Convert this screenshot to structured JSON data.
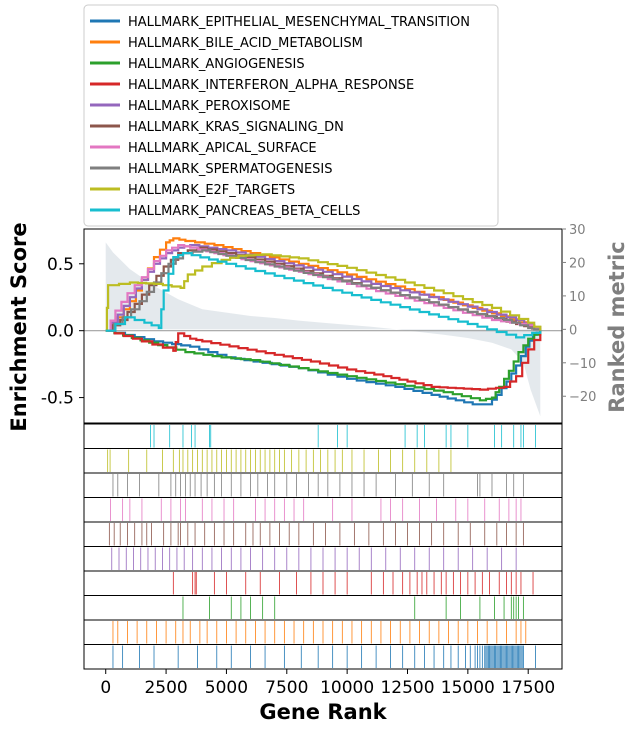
{
  "chart_data": {
    "type": "line",
    "xlabel": "Gene Rank",
    "ylabel": "Enrichment Score",
    "y2label": "Ranked metric",
    "xlim": [
      -900,
      18900
    ],
    "ylim": [
      -0.69,
      0.76
    ],
    "y2lim": [
      -28,
      30
    ],
    "x_ticks": [
      0,
      2500,
      5000,
      7500,
      10000,
      12500,
      15000,
      17500
    ],
    "x_tick_labels": [
      "0",
      "2500",
      "5000",
      "7500",
      "10000",
      "12500",
      "15000",
      "17500"
    ],
    "y_ticks": [
      0.5,
      0.0,
      -0.5
    ],
    "y_tick_labels": [
      "0.5",
      "0.0",
      "-0.5"
    ],
    "y2_ticks": [
      30,
      20,
      10,
      0,
      -10,
      -20
    ],
    "y2_tick_labels": [
      "30",
      "20",
      "10",
      "0",
      "−10",
      "−20"
    ],
    "legend_position": "top",
    "n_genes": 18000,
    "ranked_metric": {
      "x": [
        0,
        300,
        1000,
        2000,
        3000,
        4000,
        5000,
        6000,
        7000,
        8000,
        9000,
        10000,
        11000,
        12000,
        13000,
        14000,
        15000,
        16000,
        16800,
        17300,
        17600,
        18000
      ],
      "y": [
        26,
        23,
        18,
        13,
        9,
        6,
        5,
        4,
        3.4,
        2.6,
        2,
        1.4,
        0.8,
        0,
        -0.8,
        -1.6,
        -2.6,
        -4,
        -6,
        -10,
        -18,
        -26
      ]
    },
    "series": [
      {
        "name": "HALLMARK_EPITHELIAL_MESENCHYMAL_TRANSITION",
        "color": "#1f77b4",
        "x": [
          0,
          2000,
          3500,
          5000,
          6500,
          8000,
          10000,
          12000,
          13500,
          14500,
          15200,
          15800,
          16200,
          16600,
          17000,
          17400,
          17700,
          18000
        ],
        "y": [
          0,
          -0.08,
          -0.12,
          -0.2,
          -0.24,
          -0.28,
          -0.36,
          -0.42,
          -0.48,
          -0.52,
          -0.55,
          -0.55,
          -0.48,
          -0.38,
          -0.26,
          -0.12,
          -0.03,
          0
        ]
      },
      {
        "name": "HALLMARK_BILE_ACID_METABOLISM",
        "color": "#ff7f0e",
        "x": [
          0,
          500,
          1000,
          1500,
          2000,
          2500,
          2800,
          3300,
          4500,
          6000,
          8000,
          10000,
          12000,
          14000,
          16000,
          17500,
          18000
        ],
        "y": [
          0,
          0.1,
          0.22,
          0.38,
          0.55,
          0.66,
          0.69,
          0.67,
          0.64,
          0.58,
          0.5,
          0.42,
          0.33,
          0.23,
          0.13,
          0.04,
          0
        ]
      },
      {
        "name": "HALLMARK_ANGIOGENESIS",
        "color": "#2ca02c",
        "x": [
          0,
          1800,
          3300,
          4800,
          6000,
          8000,
          10000,
          12000,
          14000,
          15500,
          16000,
          16300,
          16700,
          17100,
          17500,
          18000
        ],
        "y": [
          0,
          -0.09,
          -0.16,
          -0.2,
          -0.22,
          -0.28,
          -0.34,
          -0.4,
          -0.46,
          -0.52,
          -0.5,
          -0.42,
          -0.3,
          -0.16,
          -0.06,
          0
        ]
      },
      {
        "name": "HALLMARK_INTERFERON_ALPHA_RESPONSE",
        "color": "#d62728",
        "x": [
          0,
          1500,
          2800,
          3000,
          3500,
          4000,
          5500,
          7000,
          8500,
          10000,
          11500,
          12500,
          13500,
          14500,
          15500,
          16500,
          17000,
          17500,
          18000
        ],
        "y": [
          0,
          -0.08,
          -0.15,
          -0.02,
          -0.06,
          -0.08,
          -0.13,
          -0.18,
          -0.23,
          -0.29,
          -0.34,
          -0.38,
          -0.42,
          -0.43,
          -0.44,
          -0.42,
          -0.34,
          -0.14,
          0
        ]
      },
      {
        "name": "HALLMARK_PEROXISOME",
        "color": "#9467bd",
        "x": [
          0,
          500,
          1000,
          1500,
          2000,
          2500,
          3000,
          3500,
          5000,
          7000,
          9000,
          11000,
          13000,
          15000,
          17000,
          18000
        ],
        "y": [
          0,
          0.12,
          0.25,
          0.38,
          0.5,
          0.58,
          0.62,
          0.64,
          0.6,
          0.52,
          0.44,
          0.35,
          0.27,
          0.18,
          0.08,
          0
        ]
      },
      {
        "name": "HALLMARK_KRAS_SIGNALING_DN",
        "color": "#8c564b",
        "x": [
          0,
          600,
          1200,
          1800,
          2400,
          3000,
          3800,
          5000,
          7000,
          9000,
          11000,
          13000,
          15000,
          17000,
          18000
        ],
        "y": [
          0,
          0.08,
          0.2,
          0.34,
          0.48,
          0.58,
          0.62,
          0.58,
          0.5,
          0.41,
          0.32,
          0.23,
          0.14,
          0.05,
          0
        ]
      },
      {
        "name": "HALLMARK_APICAL_SURFACE",
        "color": "#e377c2",
        "x": [
          0,
          400,
          900,
          1500,
          2000,
          2500,
          3000,
          3500,
          4500,
          6000,
          8000,
          10000,
          12000,
          14000,
          16000,
          17500,
          18000
        ],
        "y": [
          0,
          0.15,
          0.28,
          0.4,
          0.52,
          0.6,
          0.64,
          0.62,
          0.58,
          0.52,
          0.44,
          0.35,
          0.26,
          0.17,
          0.08,
          0.04,
          0
        ]
      },
      {
        "name": "HALLMARK_SPERMATOGENESIS",
        "color": "#7f7f7f",
        "x": [
          0,
          700,
          1400,
          2000,
          2600,
          3200,
          4000,
          5000,
          7000,
          9000,
          11000,
          13000,
          15000,
          16500,
          17500,
          18000
        ],
        "y": [
          0,
          0.1,
          0.22,
          0.36,
          0.5,
          0.58,
          0.6,
          0.56,
          0.48,
          0.4,
          0.32,
          0.23,
          0.14,
          0.08,
          0.02,
          0
        ]
      },
      {
        "name": "HALLMARK_E2F_TARGETS",
        "color": "#bcbd22",
        "x": [
          0,
          100,
          1000,
          2000,
          3100,
          3400,
          4000,
          4800,
          5500,
          6500,
          8000,
          10000,
          12000,
          14000,
          16000,
          17500,
          18000
        ],
        "y": [
          0,
          0.34,
          0.36,
          0.35,
          0.32,
          0.42,
          0.48,
          0.53,
          0.56,
          0.57,
          0.54,
          0.47,
          0.38,
          0.28,
          0.17,
          0.06,
          0
        ]
      },
      {
        "name": "HALLMARK_PANCREAS_BETA_CELLS",
        "color": "#17becf",
        "x": [
          0,
          800,
          1600,
          2200,
          2400,
          2800,
          3200,
          5000,
          7000,
          9000,
          11000,
          13000,
          15000,
          17000,
          18000
        ],
        "y": [
          0,
          0.1,
          0.06,
          0.02,
          0.3,
          0.55,
          0.58,
          0.5,
          0.41,
          0.32,
          0.23,
          0.14,
          0.05,
          -0.05,
          0
        ]
      }
    ],
    "rug_order": [
      "HALLMARK_PANCREAS_BETA_CELLS",
      "HALLMARK_E2F_TARGETS",
      "HALLMARK_SPERMATOGENESIS",
      "HALLMARK_APICAL_SURFACE",
      "HALLMARK_KRAS_SIGNALING_DN",
      "HALLMARK_PEROXISOME",
      "HALLMARK_INTERFERON_ALPHA_RESPONSE",
      "HALLMARK_ANGIOGENESIS",
      "HALLMARK_BILE_ACID_METABOLISM",
      "HALLMARK_EPITHELIAL_MESENCHYMAL_TRANSITION"
    ],
    "hit_positions": {
      "HALLMARK_PANCREAS_BETA_CELLS": [
        1850,
        2000,
        2650,
        3200,
        3550,
        3700,
        4300,
        4350,
        8800,
        9600,
        10000,
        12400,
        12900,
        13200,
        14100,
        14300,
        15000,
        16100,
        16400,
        16900,
        17200,
        17300,
        17800
      ],
      "HALLMARK_E2F_TARGETS": [
        80,
        180,
        950,
        1700,
        2350,
        2800,
        3050,
        3200,
        3400,
        3600,
        3800,
        4000,
        4200,
        4400,
        4600,
        4800,
        5000,
        5200,
        5400,
        5600,
        5800,
        6000,
        6200,
        6400,
        6600,
        6800,
        7000,
        7200,
        7400,
        7700,
        8000,
        8300,
        8600,
        8900,
        9200,
        9500,
        9800,
        10200,
        10700,
        11300,
        11800,
        12300,
        12800,
        13300,
        13800,
        14300
      ],
      "HALLMARK_SPERMATOGENESIS": [
        300,
        500,
        900,
        1400,
        2200,
        2700,
        2900,
        3100,
        3300,
        3500,
        3700,
        3950,
        4200,
        4500,
        4800,
        5200,
        5600,
        6000,
        6300,
        6700,
        7000,
        7500,
        7900,
        8400,
        8800,
        9200,
        9700,
        10200,
        10700,
        11200,
        12000,
        12700,
        13400,
        14000,
        15400,
        15500,
        16000,
        16600,
        16900,
        17300
      ],
      "HALLMARK_APICAL_SURFACE": [
        200,
        700,
        1000,
        1500,
        2300,
        2700,
        3100,
        3300,
        4000,
        4400,
        4900,
        5300,
        6200,
        6600,
        7000,
        7400,
        7800,
        8200,
        9400,
        10200,
        11400,
        11800,
        12300,
        13000,
        13700,
        14500,
        15000,
        15700,
        16300,
        16700,
        17000,
        17200
      ],
      "HALLMARK_KRAS_SIGNALING_DN": [
        150,
        350,
        600,
        900,
        1200,
        1500,
        1700,
        1900,
        2400,
        2700,
        3000,
        3100,
        3400,
        3700,
        4100,
        4500,
        4900,
        5300,
        5800,
        6100,
        6400,
        6800,
        7200,
        7600,
        8000,
        8600,
        9100,
        9700,
        10300,
        10900,
        11500,
        12000,
        12500,
        13000,
        13500,
        14000,
        14600,
        15100,
        15700,
        16200,
        16600,
        17000,
        17300
      ],
      "HALLMARK_PEROXISOME": [
        250,
        550,
        850,
        1150,
        1450,
        1750,
        2050,
        2350,
        2650,
        2950,
        3250,
        3600,
        4000,
        4400,
        4800,
        5200,
        5600,
        6000,
        6500,
        7000,
        7500,
        8000,
        8500,
        9000,
        9500,
        10000,
        10500,
        11000,
        11600,
        12200,
        12800,
        13400,
        14000,
        14600,
        15200,
        15800,
        16400,
        17000
      ],
      "HALLMARK_INTERFERON_ALPHA_RESPONSE": [
        2800,
        3600,
        3700,
        3750,
        4500,
        5000,
        5800,
        6400,
        7200,
        7900,
        8500,
        9000,
        9500,
        10000,
        11000,
        11500,
        11900,
        12300,
        12600,
        12900,
        13100,
        13300,
        13600,
        13900,
        14100,
        14400,
        14700,
        15000,
        15300,
        15600,
        15900,
        16300,
        16600,
        16800,
        17000,
        17200,
        17700
      ],
      "HALLMARK_ANGIOGENESIS": [
        3200,
        4300,
        5200,
        5600,
        6000,
        6500,
        7000,
        12800,
        14100,
        14700,
        15500,
        16100,
        16500,
        16800,
        16900,
        17000,
        17100,
        17300
      ],
      "HALLMARK_BILE_ACID_METABOLISM": [
        300,
        500,
        900,
        1300,
        1700,
        2100,
        2500,
        2900,
        3200,
        3500,
        3900,
        4200,
        4600,
        5000,
        5400,
        5800,
        6200,
        6600,
        7000,
        7400,
        7800,
        8200,
        8600,
        9000,
        9400,
        9800,
        10200,
        10600,
        11000,
        11400,
        11800,
        12200,
        12600,
        13000,
        13400,
        13800,
        14200,
        14600,
        15000,
        15400,
        15800,
        16200,
        16600,
        17000,
        17200,
        17400
      ],
      "HALLMARK_EPITHELIAL_MESENCHYMAL_TRANSITION": [
        300,
        700,
        1400,
        2000,
        3000,
        3800,
        4600,
        5200,
        6000,
        6600,
        7400,
        8100,
        8800,
        9400,
        10000,
        10600,
        11200,
        11800,
        12300,
        12800,
        13200,
        13600,
        14000,
        14300,
        14600,
        14900,
        15100,
        15300,
        15400,
        15500,
        15600,
        15700,
        15750,
        15800,
        15850,
        15900,
        15950,
        16000,
        16050,
        16100,
        16150,
        16200,
        16250,
        16300,
        16350,
        16400,
        16450,
        16500,
        16550,
        16600,
        16650,
        16700,
        16750,
        16800,
        16850,
        16900,
        16950,
        17000,
        17050,
        17100,
        17150,
        17200,
        17250,
        17300,
        17800
      ]
    }
  }
}
